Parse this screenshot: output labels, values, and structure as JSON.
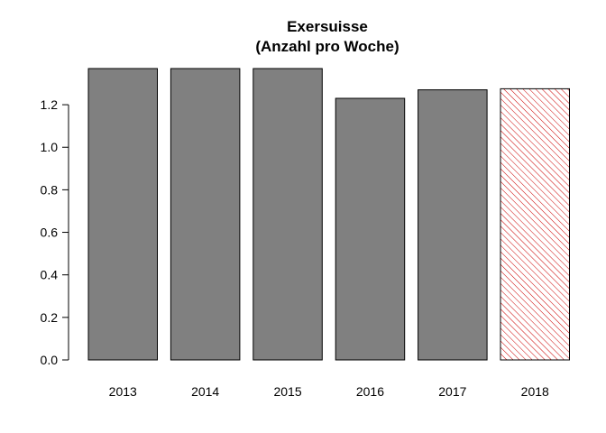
{
  "chart_data": {
    "type": "bar",
    "title_line1": "Exersuisse",
    "title_line2": "(Anzahl pro Woche)",
    "xlabel": "",
    "ylabel": "",
    "categories": [
      "2013",
      "2014",
      "2015",
      "2016",
      "2017",
      "2018"
    ],
    "values": [
      1.37,
      1.37,
      1.37,
      1.23,
      1.27,
      1.275
    ],
    "ylim": [
      0,
      1.37
    ],
    "yticks": [
      0.0,
      0.2,
      0.4,
      0.6,
      0.8,
      1.0,
      1.2
    ],
    "ytick_labels": [
      "0.0",
      "0.2",
      "0.4",
      "0.6",
      "0.8",
      "1.0",
      "1.2"
    ],
    "grid": false,
    "bar_fill": "#808080",
    "hatched_category": "2018",
    "hatch_color": "#cc0000"
  }
}
